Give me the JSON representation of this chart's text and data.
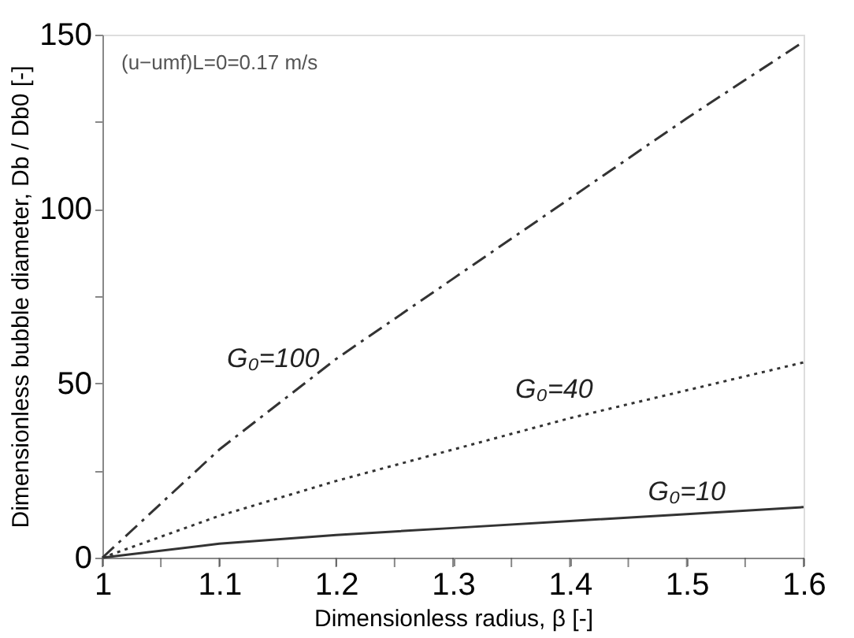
{
  "chart_data": {
    "type": "line",
    "xlabel": "Dimensionless radius, β [-]",
    "ylabel": "Dimensionless bubble diameter, Db / Db0 [-]",
    "annotations": [
      "(u−umf)L=0=0.17 m/s"
    ],
    "x": [
      1,
      1.1,
      1.2,
      1.3,
      1.4,
      1.5,
      1.6
    ],
    "series": [
      {
        "name": "G₀=100",
        "color": "#333333",
        "line_style": "dashed",
        "values": [
          0,
          31,
          57,
          80,
          103,
          126,
          148
        ]
      },
      {
        "name": "G₀=40",
        "color": "#333333",
        "line_style": "dotted",
        "values": [
          0,
          12,
          22,
          31,
          40,
          48,
          56
        ]
      },
      {
        "name": "G₀=10",
        "color": "#333333",
        "line_style": "solid",
        "values": [
          0,
          4,
          6.5,
          8.5,
          10.5,
          12.5,
          14.5
        ]
      }
    ],
    "xlim": [
      1,
      1.6
    ],
    "xticks": [
      1,
      {
        "value": 1.05,
        "label": null
      },
      1.1,
      {
        "value": 1.15,
        "label": null
      },
      1.2,
      {
        "value": 1.25,
        "label": null
      },
      1.3,
      {
        "value": 1.35,
        "label": null
      },
      1.4,
      {
        "value": 1.45,
        "label": null
      },
      1.5,
      {
        "value": 1.55,
        "label": null
      },
      1.6
    ],
    "ylim": [
      0,
      150
    ],
    "yticks": [
      0,
      {
        "value": 25,
        "label": null
      },
      50,
      {
        "value": 75,
        "label": null
      },
      100,
      {
        "value": 125,
        "label": null
      },
      150
    ],
    "grid": false,
    "legend": false,
    "marker": "none"
  }
}
